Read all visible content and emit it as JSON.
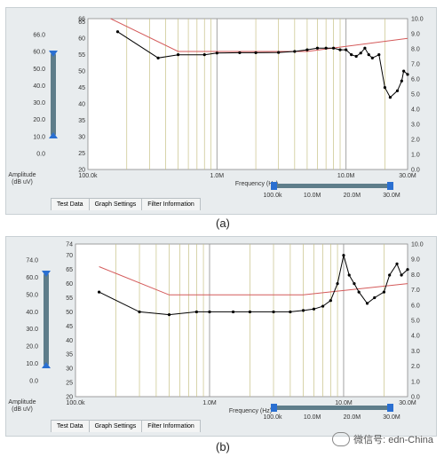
{
  "charts_meta": {
    "colors": {
      "grid_gray": "#9a9a9a",
      "grid_olive": "#c8c287",
      "limit": "#d45a5a",
      "trace": "#000000",
      "slider": "#2a6fd1",
      "panel": "#e8ecee"
    }
  },
  "chart_data": [
    {
      "type": "line",
      "caption": "(a)",
      "xlabel": "Frequency (Hz)",
      "x_scale": "log",
      "xlim": [
        100000,
        30000000
      ],
      "x_ticks": [
        "100.0k",
        "1.0M",
        "10.0M",
        "30.0M"
      ],
      "ylim_left": [
        20,
        66
      ],
      "left_ticks": [
        "66",
        "65",
        "60",
        "55",
        "50",
        "45",
        "40",
        "35",
        "30",
        "25",
        "20"
      ],
      "right_ticks": [
        "10.0",
        "9.0",
        "8.0",
        "7.0",
        "6.0",
        "5.0",
        "4.0",
        "3.0",
        "2.0",
        "1.0",
        "0.0"
      ],
      "amplitude_scale": {
        "label": "Amplitude",
        "unit": "(dB uV)",
        "ticks": [
          "66.0",
          "60.0",
          "50.0",
          "40.0",
          "30.0",
          "20.0",
          "10.0",
          "0.0"
        ]
      },
      "range_slider": {
        "ticks": [
          "100.0k",
          "10.0M",
          "20.0M",
          "30.0M"
        ]
      },
      "tabs": [
        "Test Data",
        "Graph Settings",
        "Filter Information"
      ],
      "series": [
        {
          "role": "limit",
          "x": [
            150000,
            500000,
            5000000,
            30000000
          ],
          "y": [
            66,
            56,
            56,
            60
          ]
        },
        {
          "role": "trace",
          "x": [
            170000,
            350000,
            500000,
            800000,
            1000000,
            1500000,
            2000000,
            3000000,
            4000000,
            5000000,
            6000000,
            7000000,
            8000000,
            9000000,
            10000000,
            11000000,
            12000000,
            13000000,
            14000000,
            15000000,
            16000000,
            18000000,
            20000000,
            22000000,
            25000000,
            27000000,
            28000000,
            30000000
          ],
          "y": [
            62,
            54,
            55,
            55,
            55.5,
            55.6,
            55.6,
            55.7,
            56,
            56.5,
            57,
            57,
            57,
            56.5,
            56.5,
            55,
            54.5,
            55.5,
            57,
            55,
            54,
            55,
            45,
            42,
            44,
            47,
            50,
            49
          ]
        }
      ]
    },
    {
      "type": "line",
      "caption": "(b)",
      "xlabel": "Frequency (Hz)",
      "x_scale": "log",
      "xlim": [
        100000,
        30000000
      ],
      "x_ticks": [
        "100.0k",
        "1.0M",
        "10.0M",
        "30.0M"
      ],
      "ylim_left": [
        20,
        74
      ],
      "left_ticks": [
        "74",
        "70",
        "65",
        "60",
        "55",
        "50",
        "45",
        "40",
        "35",
        "30",
        "25",
        "20"
      ],
      "right_ticks": [
        "10.0",
        "9.0",
        "8.0",
        "7.0",
        "6.0",
        "5.0",
        "4.0",
        "3.0",
        "2.0",
        "1.0",
        "0.0"
      ],
      "amplitude_scale": {
        "label": "Amplitude",
        "unit": "(dB uV)",
        "ticks": [
          "74.0",
          "60.0",
          "50.0",
          "40.0",
          "30.0",
          "20.0",
          "10.0",
          "0.0"
        ]
      },
      "range_slider": {
        "ticks": [
          "100.0k",
          "10.0M",
          "20.0M",
          "30.0M"
        ]
      },
      "tabs": [
        "Test Data",
        "Graph Settings",
        "Filter Information"
      ],
      "series": [
        {
          "role": "limit",
          "x": [
            150000,
            500000,
            5000000,
            30000000
          ],
          "y": [
            66,
            56,
            56,
            60
          ]
        },
        {
          "role": "trace",
          "x": [
            150000,
            300000,
            500000,
            800000,
            1000000,
            1500000,
            2000000,
            3000000,
            4000000,
            5000000,
            6000000,
            7000000,
            8000000,
            9000000,
            10000000,
            11000000,
            12000000,
            13000000,
            15000000,
            17000000,
            20000000,
            22000000,
            25000000,
            27000000,
            30000000
          ],
          "y": [
            57,
            50,
            49,
            50,
            50,
            50,
            50,
            50,
            50,
            50.5,
            51,
            52,
            54,
            60,
            70,
            63,
            60,
            57,
            53,
            55,
            57,
            63,
            67,
            63,
            65
          ]
        }
      ]
    }
  ],
  "watermark": "微信号: edn-China"
}
